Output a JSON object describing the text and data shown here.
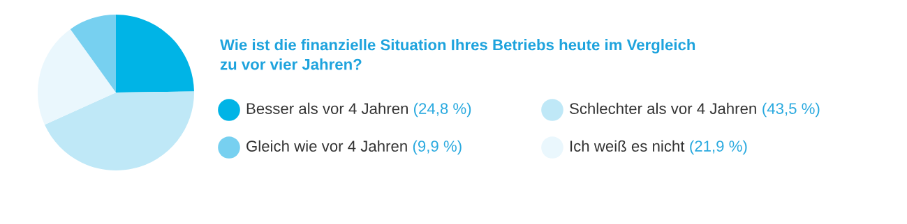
{
  "chart_data": {
    "type": "pie",
    "title": "Wie ist die finanzielle Situation Ihres Betriebs heute im Vergleich\nzu vor vier Jahren?",
    "categories": [
      "Besser als vor 4 Jahren",
      "Schlechter als vor 4 Jahren",
      "Ich weiß es nicht",
      "Gleich wie vor 4 Jahren"
    ],
    "values": [
      24.8,
      43.5,
      21.9,
      9.9
    ],
    "value_labels": [
      "(24,8 %)",
      "(43,5 %)",
      "(21,9 %)",
      "(9,9 %)"
    ],
    "colors": [
      "#00b4e6",
      "#bfe8f7",
      "#eaf7fd",
      "#77d0f0"
    ],
    "legend": "right"
  }
}
